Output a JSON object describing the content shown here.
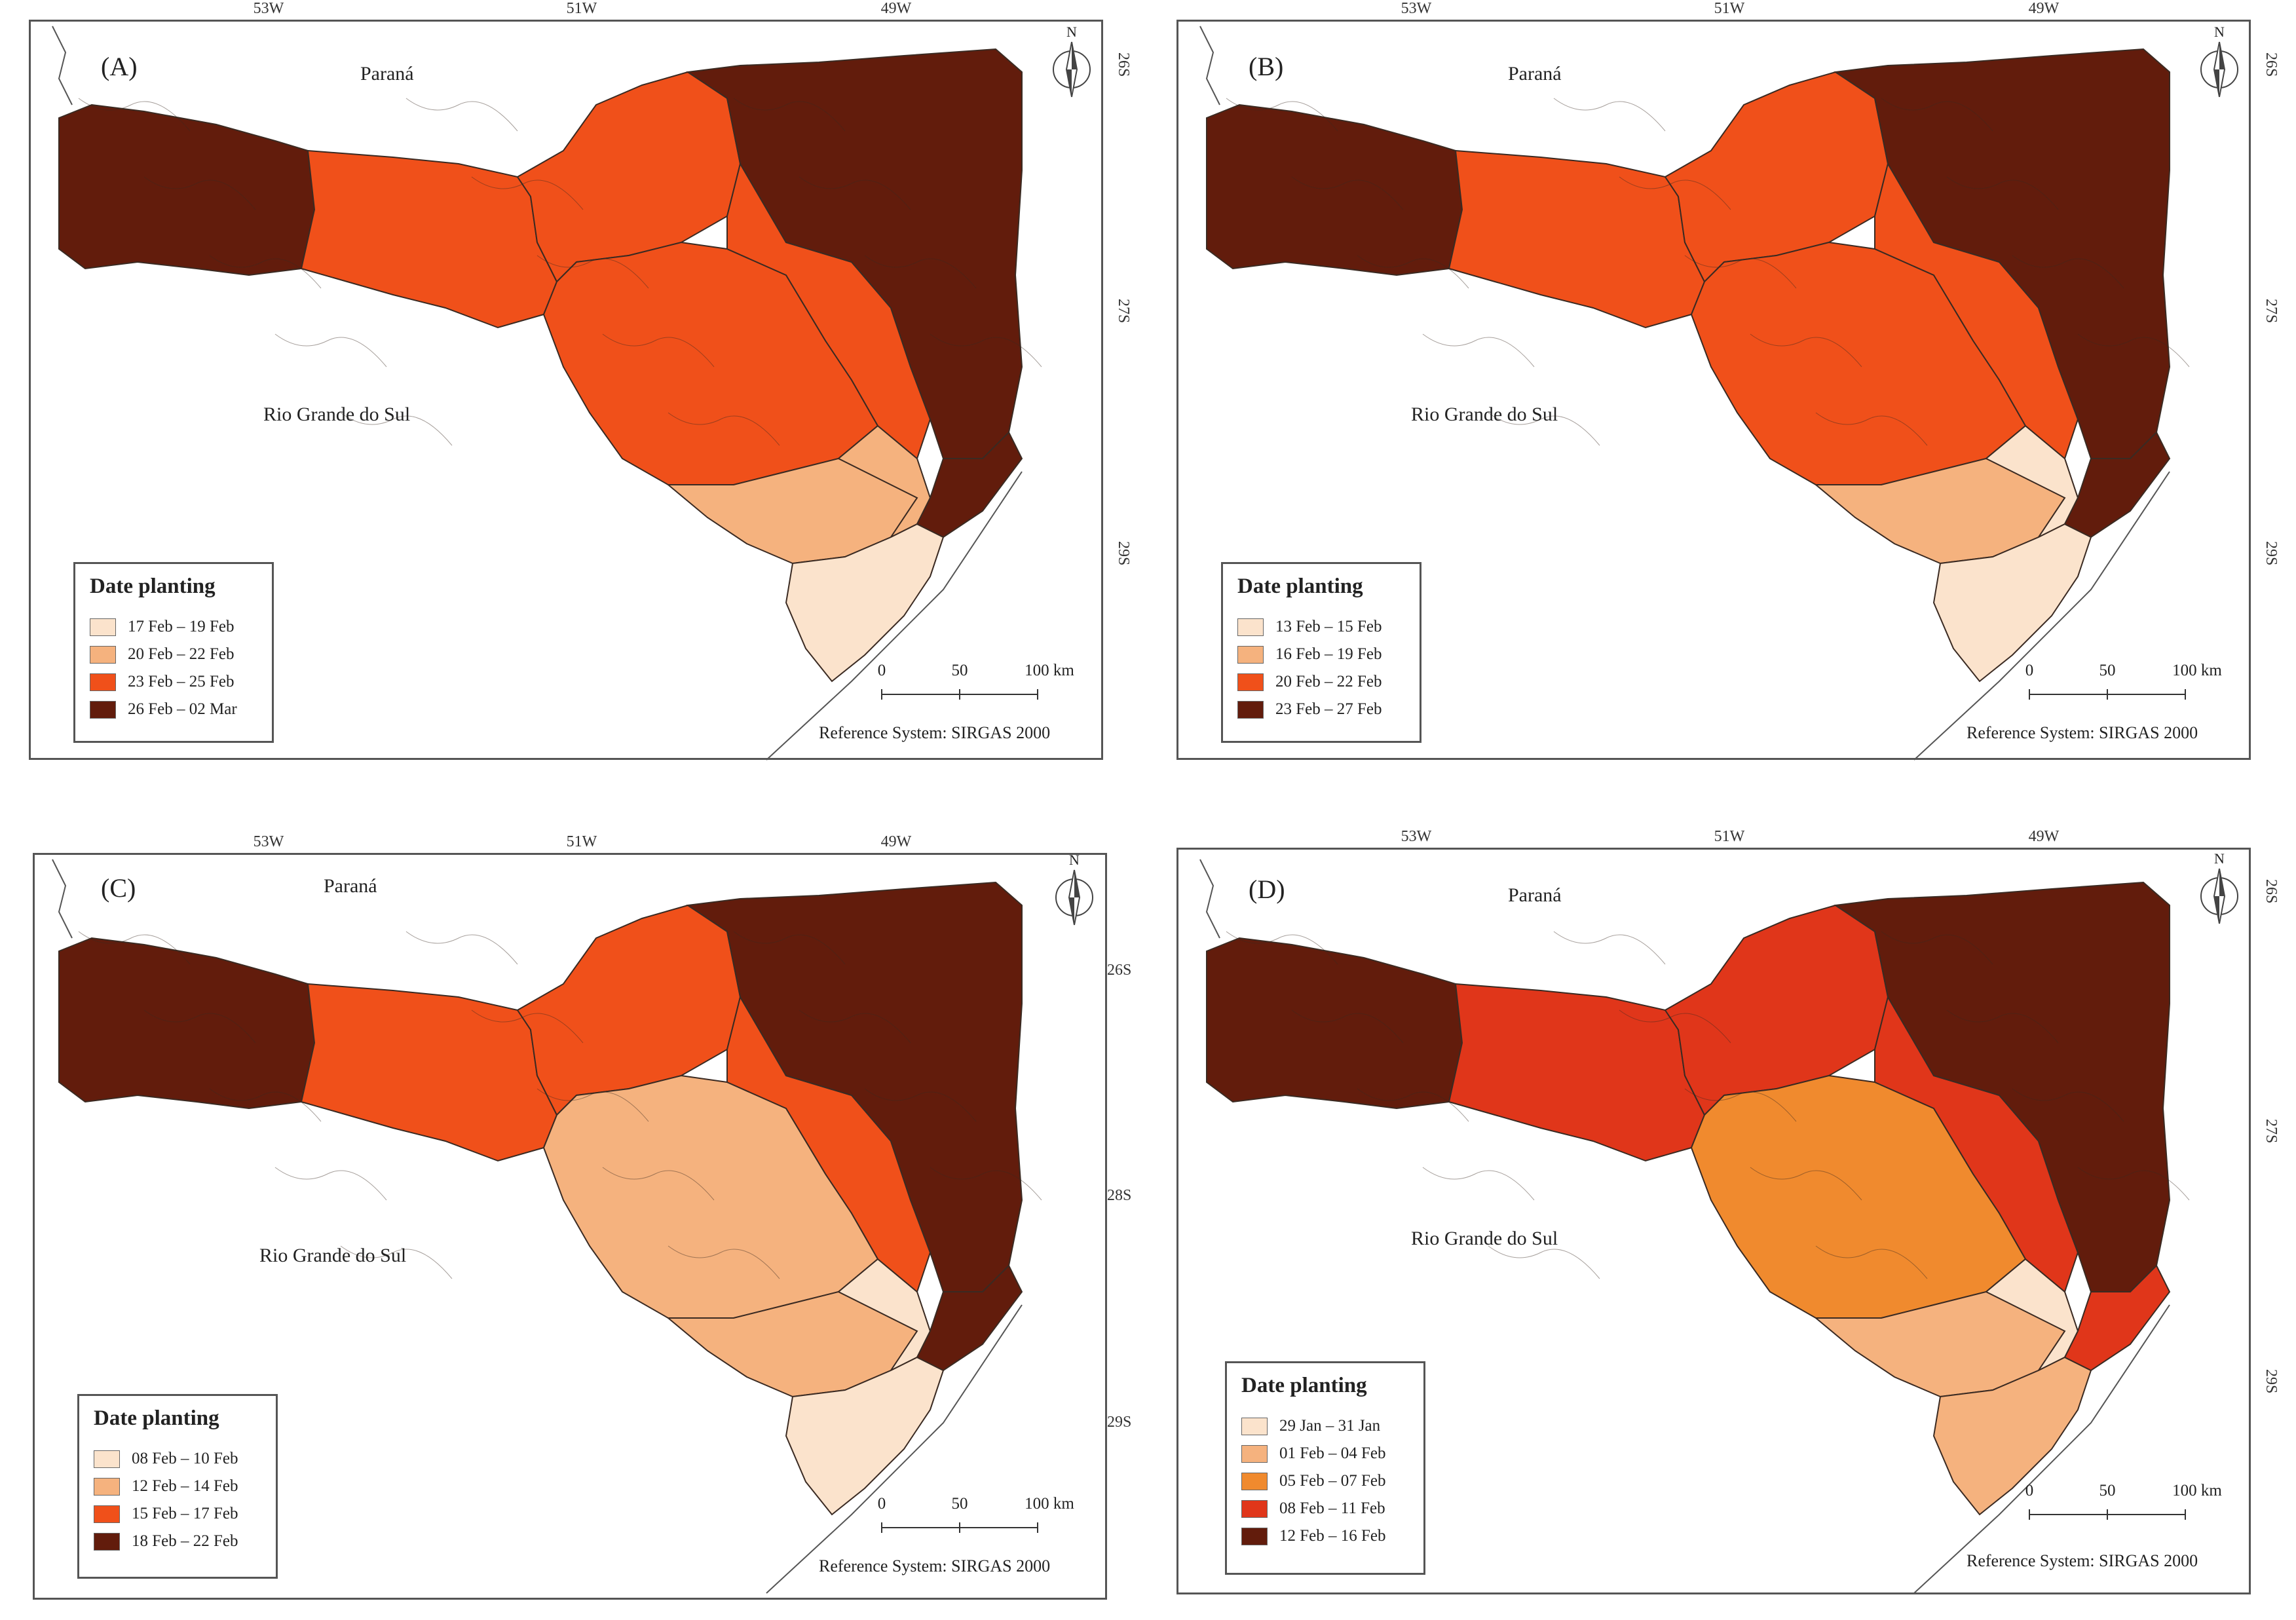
{
  "panels": [
    {
      "id": "A",
      "label": "(A)",
      "longitudes": [
        "53W",
        "51W",
        "49W"
      ],
      "latitudes": [
        "26S",
        "27S",
        "29S"
      ],
      "north_label": "N",
      "place_labels": {
        "north_state": "Paraná",
        "south_state": "Rio Grande do Sul"
      },
      "legend": {
        "title": "Date planting",
        "items": [
          {
            "label": "17 Feb – 19 Feb",
            "color": "#fbe3cc"
          },
          {
            "label": "20 Feb – 22 Feb",
            "color": "#f5b27e"
          },
          {
            "label": "23 Feb – 25 Feb",
            "color": "#f0501a"
          },
          {
            "label": "26 Feb – 02 Mar",
            "color": "#621c0c"
          }
        ]
      },
      "scale": [
        "0",
        "50",
        "100 km"
      ],
      "reference_system": "Reference System: SIRGAS 2000",
      "region_classes": [
        3,
        2,
        2,
        2,
        1,
        1,
        0,
        2,
        3,
        3
      ]
    },
    {
      "id": "B",
      "label": "(B)",
      "longitudes": [
        "53W",
        "51W",
        "49W"
      ],
      "latitudes": [
        "26S",
        "27S",
        "29S"
      ],
      "north_label": "N",
      "place_labels": {
        "north_state": "Paraná",
        "south_state": "Rio Grande do Sul"
      },
      "legend": {
        "title": "Date planting",
        "items": [
          {
            "label": "13 Feb – 15 Feb",
            "color": "#fbe3cc"
          },
          {
            "label": "16 Feb – 19 Feb",
            "color": "#f5b27e"
          },
          {
            "label": "20 Feb – 22 Feb",
            "color": "#f0501a"
          },
          {
            "label": "23 Feb – 27 Feb",
            "color": "#621c0c"
          }
        ]
      },
      "scale": [
        "0",
        "50",
        "100 km"
      ],
      "reference_system": "Reference System: SIRGAS 2000",
      "region_classes": [
        3,
        2,
        2,
        2,
        1,
        0,
        0,
        2,
        3,
        3
      ]
    },
    {
      "id": "C",
      "label": "(C)",
      "longitudes": [
        "53W",
        "51W",
        "49W"
      ],
      "latitudes": [
        "26S",
        "28S",
        "29S"
      ],
      "north_label": "N",
      "place_labels": {
        "north_state": "Paraná",
        "south_state": "Rio Grande do Sul"
      },
      "legend": {
        "title": "Date planting",
        "items": [
          {
            "label": "08 Feb – 10 Feb",
            "color": "#fbe3cc"
          },
          {
            "label": "12 Feb – 14 Feb",
            "color": "#f5b27e"
          },
          {
            "label": "15 Feb – 17 Feb",
            "color": "#f0501a"
          },
          {
            "label": "18 Feb – 22 Feb",
            "color": "#621c0c"
          }
        ]
      },
      "scale": [
        "0",
        "50",
        "100 km"
      ],
      "reference_system": "Reference System: SIRGAS 2000",
      "region_classes": [
        3,
        2,
        2,
        1,
        1,
        0,
        0,
        2,
        3,
        3
      ]
    },
    {
      "id": "D",
      "label": "(D)",
      "longitudes": [
        "53W",
        "51W",
        "49W"
      ],
      "latitudes": [
        "26S",
        "27S",
        "29S"
      ],
      "north_label": "N",
      "place_labels": {
        "north_state": "Paraná",
        "south_state": "Rio Grande do Sul"
      },
      "legend": {
        "title": "Date planting",
        "items": [
          {
            "label": "29 Jan – 31 Jan",
            "color": "#fbe3cc"
          },
          {
            "label": "01 Feb – 04 Feb",
            "color": "#f5b27e"
          },
          {
            "label": "05 Feb – 07 Feb",
            "color": "#f08a2e"
          },
          {
            "label": "08 Feb – 11 Feb",
            "color": "#e0361a"
          },
          {
            "label": "12 Feb – 16 Feb",
            "color": "#621c0c"
          }
        ]
      },
      "scale": [
        "0",
        "50",
        "100 km"
      ],
      "reference_system": "Reference System: SIRGAS 2000",
      "region_classes": [
        4,
        3,
        3,
        2,
        1,
        0,
        1,
        3,
        4,
        3
      ]
    }
  ]
}
